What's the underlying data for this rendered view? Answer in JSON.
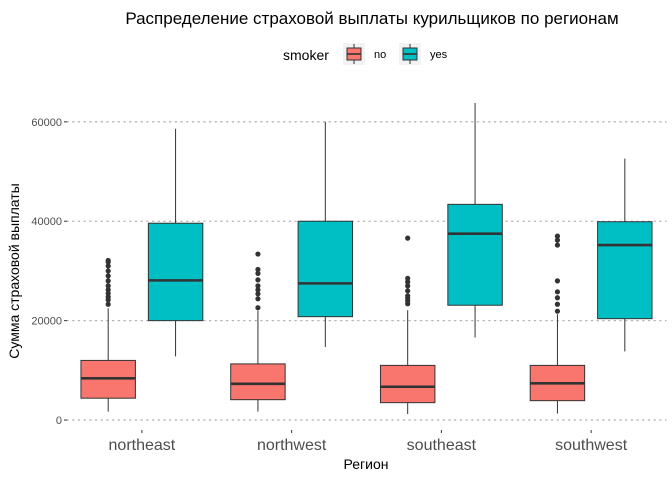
{
  "chart_data": {
    "type": "boxplot",
    "title": "Распределение страховой выплаты курильщиков по регионам",
    "xlabel": "Регион",
    "ylabel": "Сумма страховой выплаты",
    "categories": [
      "northeast",
      "northwest",
      "southeast",
      "southwest"
    ],
    "ylim": [
      -2000,
      66000
    ],
    "yticks": [
      0,
      20000,
      40000,
      60000
    ],
    "ytick_labels": [
      "0",
      "20000",
      "40000",
      "60000"
    ],
    "grid": "dotted horizontal major lines",
    "legend": {
      "title": "smoker",
      "position": "top",
      "entries": [
        {
          "label": "no",
          "color": "#F8766D"
        },
        {
          "label": "yes",
          "color": "#00BFC4"
        }
      ]
    },
    "series": [
      {
        "name": "no",
        "color": "#F8766D",
        "boxes": [
          {
            "whisker_low": 1700,
            "q1": 4400,
            "median": 8400,
            "q3": 12000,
            "whisker_high": 22500,
            "outliers": [
              23300,
              24200,
              24800,
              25500,
              26200,
              27000,
              28000,
              29000,
              30000,
              31000,
              31800,
              32100
            ]
          },
          {
            "whisker_low": 1700,
            "q1": 4100,
            "median": 7300,
            "q3": 11300,
            "whisker_high": 22000,
            "outliers": [
              22600,
              24400,
              25400,
              26200,
              27000,
              28200,
              29500,
              30300,
              33400
            ]
          },
          {
            "whisker_low": 1200,
            "q1": 3500,
            "median": 6700,
            "q3": 11000,
            "whisker_high": 22100,
            "outliers": [
              23400,
              24000,
              24500,
              25000,
              26000,
              27000,
              27800,
              28500,
              36600
            ]
          },
          {
            "whisker_low": 1300,
            "q1": 3900,
            "median": 7400,
            "q3": 11000,
            "whisker_high": 21300,
            "outliers": [
              21900,
              23300,
              24600,
              25800,
              28000,
              35200,
              36200,
              37000
            ]
          }
        ]
      },
      {
        "name": "yes",
        "color": "#00BFC4",
        "boxes": [
          {
            "whisker_low": 12800,
            "q1": 20000,
            "median": 28100,
            "q3": 39600,
            "whisker_high": 58600,
            "outliers": []
          },
          {
            "whisker_low": 14700,
            "q1": 20800,
            "median": 27500,
            "q3": 40000,
            "whisker_high": 60000,
            "outliers": []
          },
          {
            "whisker_low": 16600,
            "q1": 23100,
            "median": 37500,
            "q3": 43400,
            "whisker_high": 63800,
            "outliers": []
          },
          {
            "whisker_low": 13800,
            "q1": 20400,
            "median": 35200,
            "q3": 39900,
            "whisker_high": 52600,
            "outliers": []
          }
        ]
      }
    ]
  }
}
